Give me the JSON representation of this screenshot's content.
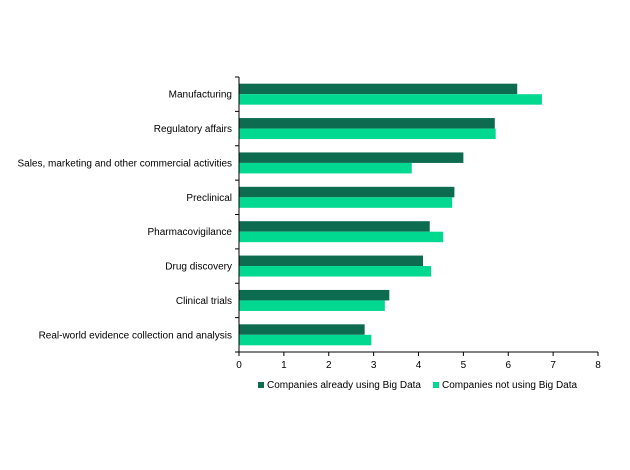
{
  "chart_data": {
    "type": "bar",
    "orientation": "horizontal",
    "categories": [
      "Manufacturing",
      "Regulatory affairs",
      "Sales, marketing and other commercial activities",
      "Preclinical",
      "Pharmacovigilance",
      "Drug discovery",
      "Clinical trials",
      "Real-world evidence collection and analysis"
    ],
    "series": [
      {
        "name": "Companies already using Big Data",
        "color": "#0d6b4f",
        "values": [
          6.2,
          5.7,
          5.0,
          4.8,
          4.25,
          4.1,
          3.35,
          2.8
        ]
      },
      {
        "name": "Companies not using Big Data",
        "color": "#00d98f",
        "values": [
          6.75,
          5.72,
          3.85,
          4.75,
          4.55,
          4.28,
          3.25,
          2.95
        ]
      }
    ],
    "title": "",
    "xlabel": "",
    "ylabel": "",
    "xlim": [
      0,
      8
    ],
    "ticks": [
      "0",
      "1",
      "2",
      "3",
      "4",
      "5",
      "6",
      "7",
      "8"
    ],
    "grid": false,
    "legend_position": "bottom"
  }
}
